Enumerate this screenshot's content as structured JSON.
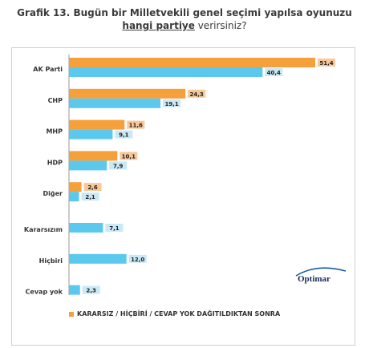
{
  "title": {
    "line1": "Grafik 13. Bugün bir Milletvekili genel seçimi yapılsa oyunuzu",
    "line2_underlined": "hangi partiye",
    "line2_rest": " verirsiniz?"
  },
  "legend": {
    "label": "KARARSIZ / HİÇBİRİ / CEVAP YOK DAĞITILDIKTAN SONRA"
  },
  "logo": {
    "text": "Optimar"
  },
  "colors": {
    "orange": "#f5a03a",
    "orange_label_bg": "#f8c79a",
    "blue": "#5bc8ee",
    "blue_label_bg": "#c9e9f7"
  },
  "chart_data": {
    "type": "bar",
    "orientation": "horizontal",
    "categories": [
      "AK Parti",
      "CHP",
      "MHP",
      "HDP",
      "Diğer",
      "Kararsızım",
      "Hiçbiri",
      "Cevap yok"
    ],
    "series": [
      {
        "name": "KARARSIZ / HİÇBİRİ / CEVAP YOK DAĞITILDIKTAN SONRA",
        "color": "#f5a03a",
        "values": [
          51.4,
          24.3,
          11.6,
          10.1,
          2.6,
          null,
          null,
          null
        ],
        "labels": [
          "51,4",
          "24,3",
          "11,6",
          "10,1",
          "2,6",
          "",
          "",
          ""
        ]
      },
      {
        "name": "",
        "color": "#5bc8ee",
        "values": [
          40.4,
          19.1,
          9.1,
          7.9,
          2.1,
          7.1,
          12.0,
          2.3
        ],
        "labels": [
          "40,4",
          "19,1",
          "9,1",
          "7,9",
          "2,1",
          "7,1",
          "12,0",
          "2,3"
        ]
      }
    ],
    "xlim": [
      0,
      55
    ],
    "grid": false,
    "legend_position": "bottom"
  }
}
